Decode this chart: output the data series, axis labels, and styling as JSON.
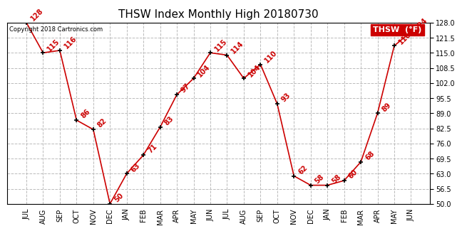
{
  "title": "THSW Index Monthly High 20180730",
  "copyright": "Copyright 2018 Cartronics.com",
  "legend_label": "THSW  (°F)",
  "months": [
    "JUL",
    "AUG",
    "SEP",
    "OCT",
    "NOV",
    "DEC",
    "JAN",
    "FEB",
    "MAR",
    "APR",
    "MAY",
    "JUN",
    "JUL",
    "AUG",
    "SEP",
    "OCT",
    "NOV",
    "DEC",
    "JAN",
    "FEB",
    "MAR",
    "APR",
    "MAY",
    "JUN"
  ],
  "values": [
    128,
    115,
    116,
    86,
    82,
    50,
    63,
    71,
    83,
    97,
    104,
    115,
    114,
    104,
    110,
    93,
    62,
    58,
    58,
    60,
    68,
    89,
    118,
    124
  ],
  "line_color": "#cc0000",
  "marker_color": "#000000",
  "bg_color": "#ffffff",
  "grid_color": "#bbbbbb",
  "ylim_min": 50.0,
  "ylim_max": 128.0,
  "yticks": [
    50.0,
    56.5,
    63.0,
    69.5,
    76.0,
    82.5,
    89.0,
    95.5,
    102.0,
    108.5,
    115.0,
    121.5,
    128.0
  ],
  "title_fontsize": 11,
  "annotation_fontsize": 7,
  "tick_fontsize": 7,
  "legend_bg": "#cc0000",
  "legend_text_color": "#ffffff",
  "legend_fontsize": 8
}
